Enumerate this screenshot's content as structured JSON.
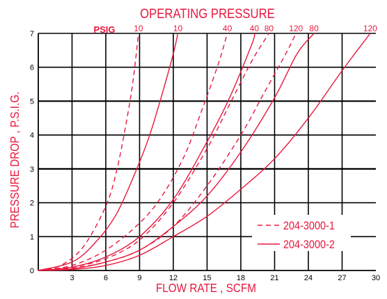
{
  "chart_data": {
    "type": "line",
    "title": "OPERATING PRESSURE",
    "xlabel": "FLOW RATE , SCFM",
    "ylabel": "PRESSURE DROP , P.S.I.G.",
    "pressure_unit": "PSIG",
    "xlim": [
      0,
      30
    ],
    "ylim": [
      0,
      7
    ],
    "x_ticks": [
      3,
      6,
      9,
      12,
      15,
      18,
      21,
      24,
      27,
      30
    ],
    "y_ticks": [
      0,
      1,
      2,
      3,
      4,
      5,
      6,
      7
    ],
    "grid": true,
    "legend_position": "bottom-right",
    "colors": {
      "curve": "#e8173d",
      "grid": "#000000"
    },
    "legend": [
      {
        "label": "204-3000-1",
        "style": "dashed"
      },
      {
        "label": "204-3000-2",
        "style": "solid"
      }
    ],
    "series": [
      {
        "model": "204-3000-1",
        "pressure_label": "10",
        "style": "dashed",
        "points": [
          [
            0,
            0
          ],
          [
            2,
            0.15
          ],
          [
            4,
            0.7
          ],
          [
            6,
            1.9
          ],
          [
            7,
            3.0
          ],
          [
            8,
            4.7
          ],
          [
            8.5,
            5.8
          ],
          [
            8.9,
            7
          ]
        ]
      },
      {
        "model": "204-3000-1",
        "pressure_label": "40",
        "style": "dashed",
        "points": [
          [
            0,
            0
          ],
          [
            3,
            0.15
          ],
          [
            6,
            0.6
          ],
          [
            9,
            1.4
          ],
          [
            11,
            2.2
          ],
          [
            13,
            3.4
          ],
          [
            14.5,
            4.7
          ],
          [
            16,
            6.1
          ],
          [
            16.8,
            7
          ]
        ]
      },
      {
        "model": "204-3000-1",
        "pressure_label": "80",
        "style": "dashed",
        "points": [
          [
            0,
            0
          ],
          [
            3,
            0.1
          ],
          [
            6,
            0.35
          ],
          [
            9,
            0.9
          ],
          [
            12,
            2.0
          ],
          [
            15,
            3.6
          ],
          [
            17,
            4.9
          ],
          [
            19,
            6.2
          ],
          [
            20.5,
            7
          ]
        ]
      },
      {
        "model": "204-3000-1",
        "pressure_label": "120",
        "style": "dashed",
        "points": [
          [
            0,
            0
          ],
          [
            3,
            0.07
          ],
          [
            6,
            0.25
          ],
          [
            9,
            0.6
          ],
          [
            12,
            1.3
          ],
          [
            15,
            2.5
          ],
          [
            18,
            4.0
          ],
          [
            20,
            5.2
          ],
          [
            22,
            6.4
          ],
          [
            22.9,
            7
          ]
        ]
      },
      {
        "model": "204-3000-2",
        "pressure_label": "10",
        "style": "solid",
        "points": [
          [
            0,
            0
          ],
          [
            3,
            0.25
          ],
          [
            5,
            0.8
          ],
          [
            7,
            1.7
          ],
          [
            9,
            3.2
          ],
          [
            10,
            4.1
          ],
          [
            11,
            5.2
          ],
          [
            12,
            6.4
          ],
          [
            12.4,
            7
          ]
        ]
      },
      {
        "model": "204-3000-2",
        "pressure_label": "40",
        "style": "solid",
        "points": [
          [
            0,
            0
          ],
          [
            3,
            0.1
          ],
          [
            6,
            0.4
          ],
          [
            9,
            1.0
          ],
          [
            12,
            2.1
          ],
          [
            15,
            3.8
          ],
          [
            17,
            5.1
          ],
          [
            19,
            6.7
          ],
          [
            19.2,
            7
          ]
        ]
      },
      {
        "model": "204-3000-2",
        "pressure_label": "80",
        "style": "solid",
        "points": [
          [
            0,
            0
          ],
          [
            3,
            0.05
          ],
          [
            6,
            0.25
          ],
          [
            9,
            0.6
          ],
          [
            12,
            1.3
          ],
          [
            15,
            2.2
          ],
          [
            18,
            3.5
          ],
          [
            21,
            5.1
          ],
          [
            23,
            6.4
          ],
          [
            24.5,
            7
          ]
        ]
      },
      {
        "model": "204-3000-2",
        "pressure_label": "120",
        "style": "solid",
        "points": [
          [
            0,
            0
          ],
          [
            3,
            0.03
          ],
          [
            6,
            0.15
          ],
          [
            9,
            0.45
          ],
          [
            12,
            1.0
          ],
          [
            15,
            1.6
          ],
          [
            18,
            2.4
          ],
          [
            21,
            3.3
          ],
          [
            24,
            4.5
          ],
          [
            27,
            5.9
          ],
          [
            29.5,
            7
          ]
        ]
      }
    ]
  }
}
